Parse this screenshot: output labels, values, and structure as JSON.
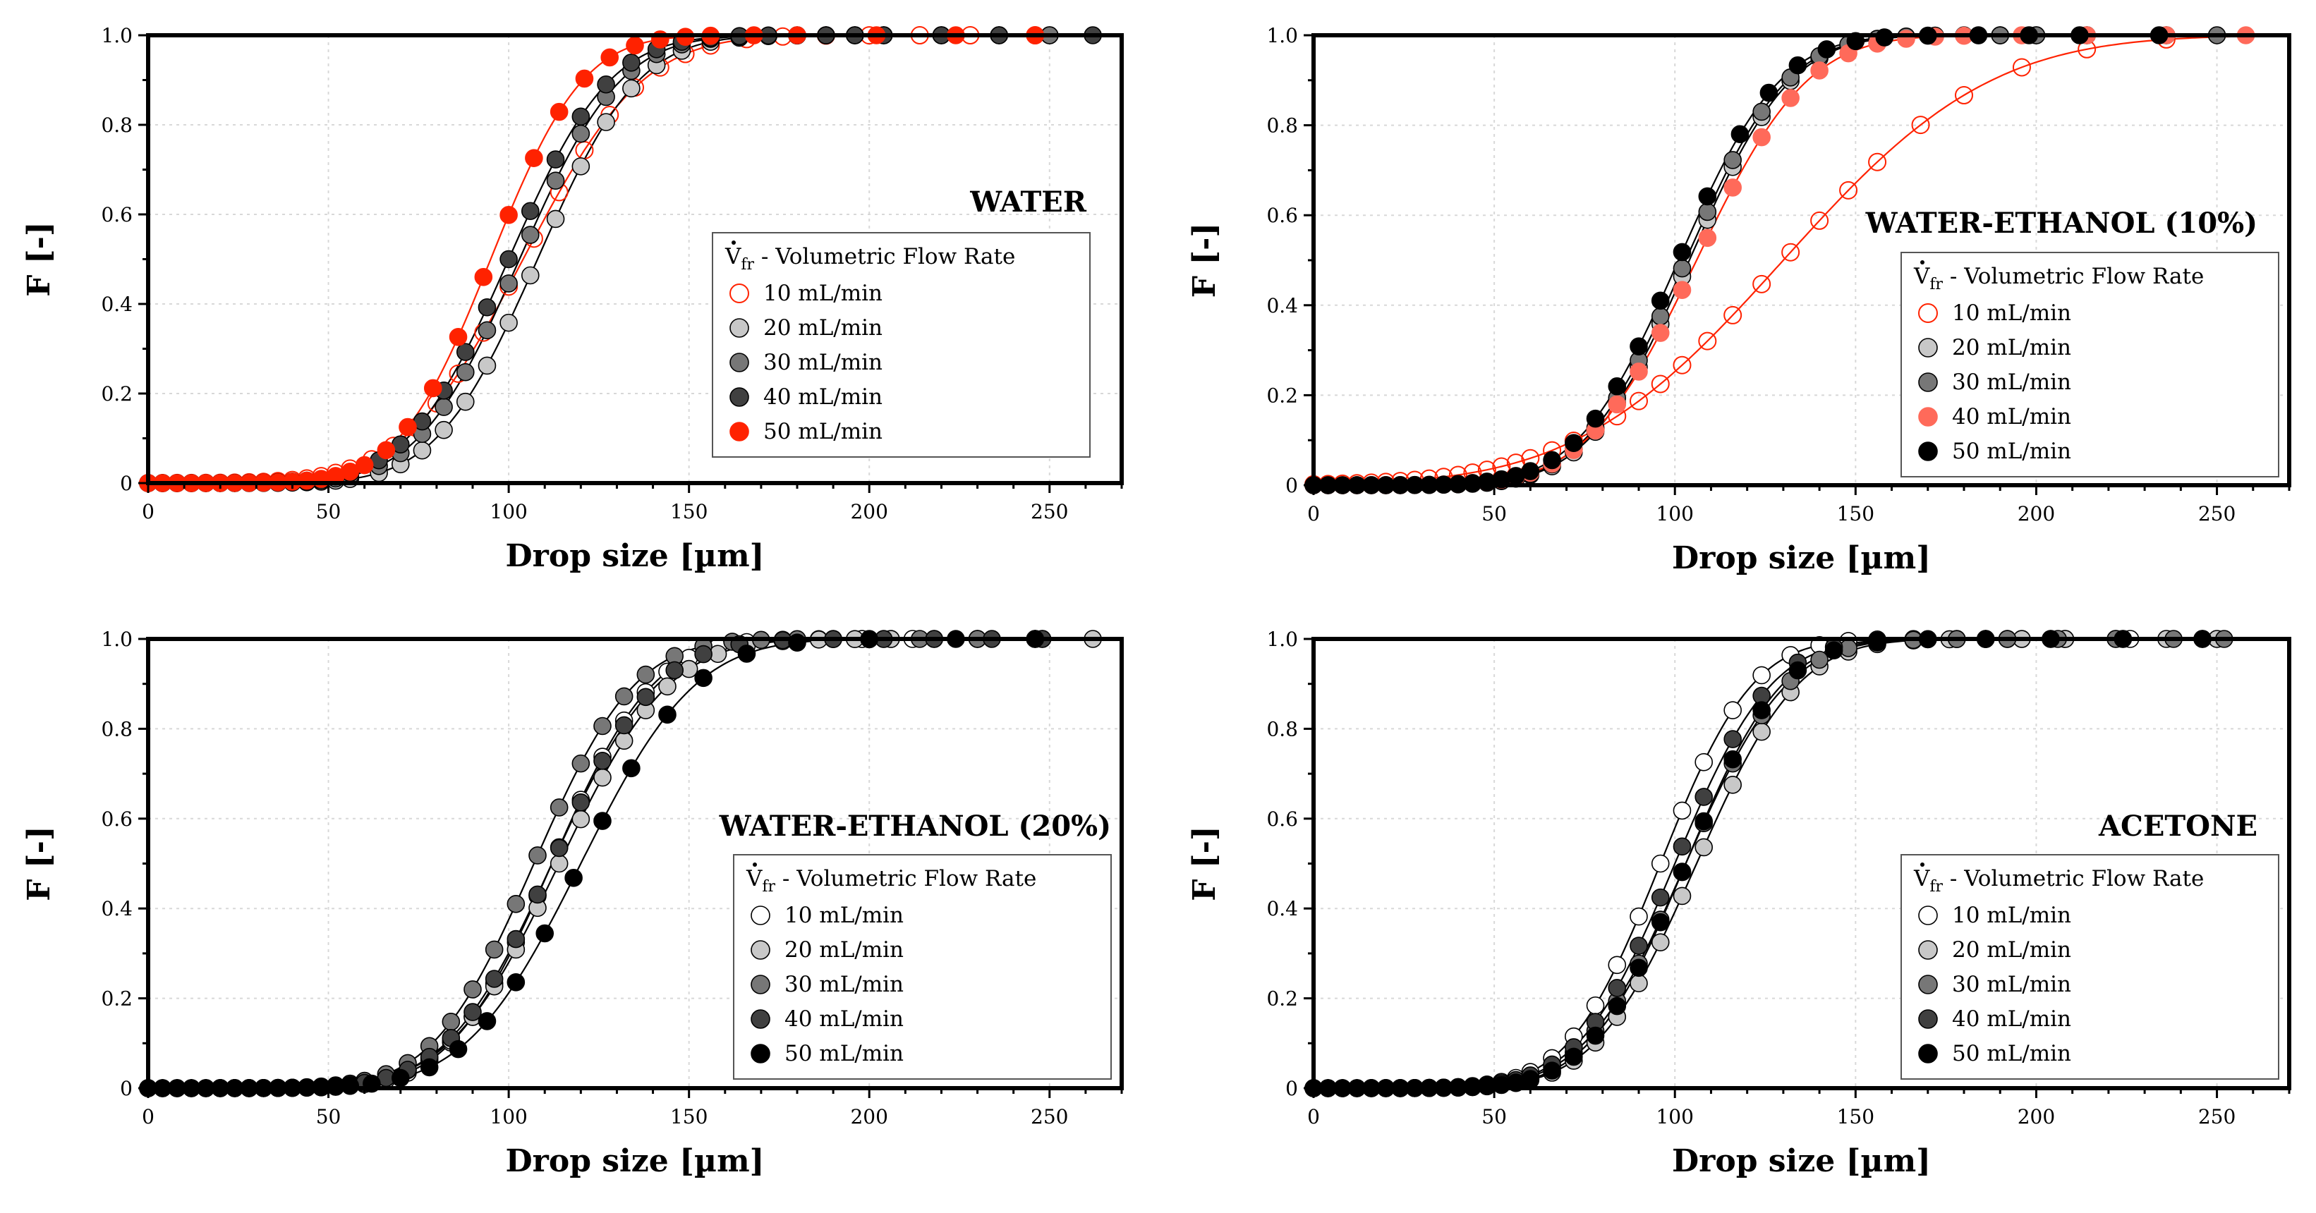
{
  "figure": {
    "legend_title_symbol": "V",
    "legend_title_subscript": "fr",
    "legend_title_rest": " - Volumetric Flow Rate"
  },
  "chart_data": [
    {
      "type": "scatter",
      "title": "WATER",
      "xlabel": "Drop size [µm]",
      "ylabel": "F [-]",
      "xlim": [
        0,
        270
      ],
      "ylim": [
        0,
        1.0
      ],
      "xticks": [
        "0",
        "50",
        "100",
        "150",
        "200",
        "250"
      ],
      "yticks": [
        "0",
        "0.2",
        "0.4",
        "0.6",
        "0.8",
        "1.0"
      ],
      "legend_position": "center-right",
      "series": [
        {
          "name": "10 mL/min",
          "mu": 104,
          "sigma": 26,
          "x_max": 270,
          "points_x": [
            0,
            4,
            8,
            12,
            16,
            20,
            24,
            28,
            32,
            36,
            40,
            44,
            48,
            52,
            56,
            62,
            68,
            74,
            80,
            86,
            93,
            100,
            107,
            114,
            121,
            128,
            135,
            142,
            149,
            156,
            166,
            176,
            188,
            200,
            214,
            228,
            246
          ],
          "color": "#ff2200",
          "fill": "none",
          "fit_color": "#ff2200"
        },
        {
          "name": "20 mL/min",
          "mu": 108,
          "sigma": 22,
          "x_max": 265,
          "points_x": [
            0,
            4,
            8,
            12,
            16,
            20,
            24,
            28,
            32,
            36,
            40,
            44,
            48,
            52,
            56,
            64,
            70,
            76,
            82,
            88,
            94,
            100,
            106,
            113,
            120,
            127,
            134,
            141,
            148,
            156,
            164,
            172,
            180,
            188,
            196,
            204,
            220,
            236,
            250
          ],
          "color": "#c8c8c8",
          "fill": "#c8c8c8",
          "fit_color": "#000000"
        },
        {
          "name": "30 mL/min",
          "mu": 103,
          "sigma": 22,
          "x_max": 265,
          "points_x": [
            0,
            4,
            8,
            12,
            16,
            20,
            24,
            28,
            32,
            36,
            40,
            44,
            48,
            52,
            56,
            64,
            70,
            76,
            82,
            88,
            94,
            100,
            106,
            113,
            120,
            127,
            134,
            141,
            148,
            156,
            164,
            172,
            180,
            188,
            196,
            204,
            220,
            236,
            250
          ],
          "color": "#777777",
          "fill": "#777777",
          "fit_color": "#000000"
        },
        {
          "name": "40 mL/min",
          "mu": 100,
          "sigma": 22,
          "x_max": 265,
          "points_x": [
            0,
            4,
            8,
            12,
            16,
            20,
            24,
            28,
            32,
            36,
            40,
            44,
            48,
            52,
            56,
            64,
            70,
            76,
            82,
            88,
            94,
            100,
            106,
            113,
            120,
            127,
            134,
            141,
            148,
            156,
            164,
            172,
            180,
            188,
            196,
            204,
            220,
            236,
            262
          ],
          "color": "#404040",
          "fill": "#404040",
          "fit_color": "#000000"
        },
        {
          "name": "50 mL/min",
          "mu": 95,
          "sigma": 20,
          "x_max": 265,
          "points_x": [
            0,
            4,
            8,
            12,
            16,
            20,
            24,
            28,
            32,
            36,
            40,
            44,
            48,
            52,
            56,
            60,
            66,
            72,
            79,
            86,
            93,
            100,
            107,
            114,
            121,
            128,
            135,
            142,
            149,
            156,
            168,
            180,
            202,
            224,
            246
          ],
          "color": "#ff2200",
          "fill": "#ff2200",
          "fit_color": "#ff2200"
        }
      ]
    },
    {
      "type": "scatter",
      "title": "WATER-ETHANOL (10%)",
      "xlabel": "Drop size [µm]",
      "ylabel": "F [-]",
      "xlim": [
        0,
        270
      ],
      "ylim": [
        0,
        1.0
      ],
      "xticks": [
        "0",
        "50",
        "100",
        "150",
        "200",
        "250"
      ],
      "yticks": [
        "0",
        "0.2",
        "0.4",
        "0.6",
        "0.8",
        "1.0"
      ],
      "legend_position": "center-right",
      "series": [
        {
          "name": "10 mL/min",
          "mu": 130,
          "sigma": 45,
          "x_max": 260,
          "points_x": [
            0,
            4,
            8,
            12,
            16,
            20,
            24,
            28,
            32,
            36,
            40,
            44,
            48,
            52,
            56,
            60,
            66,
            72,
            78,
            84,
            90,
            96,
            102,
            109,
            116,
            124,
            132,
            140,
            148,
            156,
            168,
            180,
            196,
            214,
            236
          ],
          "color": "#ff2200",
          "fill": "none",
          "fit_color": "#ff2200"
        },
        {
          "name": "20 mL/min",
          "mu": 104,
          "sigma": 22,
          "x_max": 260,
          "points_x": [
            0,
            4,
            8,
            12,
            16,
            20,
            24,
            28,
            32,
            36,
            40,
            44,
            48,
            52,
            56,
            60,
            66,
            72,
            78,
            84,
            90,
            96,
            102,
            109,
            116,
            124,
            132,
            140,
            148,
            156,
            164,
            172,
            180,
            190,
            200,
            214,
            236
          ],
          "color": "#c8c8c8",
          "fill": "#c8c8c8",
          "fit_color": "#000000"
        },
        {
          "name": "30 mL/min",
          "mu": 103,
          "sigma": 22,
          "x_max": 260,
          "points_x": [
            0,
            4,
            8,
            12,
            16,
            20,
            24,
            28,
            32,
            36,
            40,
            44,
            48,
            52,
            56,
            60,
            66,
            72,
            78,
            84,
            90,
            96,
            102,
            109,
            116,
            124,
            132,
            140,
            148,
            156,
            164,
            172,
            180,
            190,
            200,
            214,
            236,
            250
          ],
          "color": "#777777",
          "fill": "#777777",
          "fit_color": "#000000"
        },
        {
          "name": "40 mL/min",
          "mu": 106,
          "sigma": 24,
          "x_max": 260,
          "points_x": [
            0,
            4,
            8,
            12,
            16,
            20,
            24,
            28,
            32,
            36,
            40,
            44,
            48,
            52,
            56,
            60,
            66,
            72,
            78,
            84,
            90,
            96,
            102,
            109,
            116,
            124,
            132,
            140,
            148,
            156,
            164,
            172,
            180,
            196,
            214,
            236,
            258
          ],
          "color": "#ff6a5a",
          "fill": "#ff6a5a",
          "fit_color": "#ff2200"
        },
        {
          "name": "50 mL/min",
          "mu": 101,
          "sigma": 22,
          "x_max": 260,
          "points_x": [
            0,
            4,
            8,
            12,
            16,
            20,
            24,
            28,
            32,
            36,
            40,
            44,
            48,
            52,
            56,
            60,
            66,
            72,
            78,
            84,
            90,
            96,
            102,
            109,
            118,
            126,
            134,
            142,
            150,
            158,
            170,
            184,
            198,
            212,
            234
          ],
          "color": "#000000",
          "fill": "#000000",
          "fit_color": "#000000"
        }
      ]
    },
    {
      "type": "scatter",
      "title": "WATER-ETHANOL (20%)",
      "xlabel": "Drop size [µm]",
      "ylabel": "F [-]",
      "xlim": [
        0,
        270
      ],
      "ylim": [
        0,
        1.0
      ],
      "xticks": [
        "0",
        "50",
        "100",
        "150",
        "200",
        "250"
      ],
      "yticks": [
        "0",
        "0.2",
        "0.4",
        "0.6",
        "0.8",
        "1.0"
      ],
      "legend_position": "center-right",
      "series": [
        {
          "name": "10 mL/min",
          "mu": 112,
          "sigma": 22,
          "x_max": 265,
          "points_x": [
            0,
            4,
            8,
            12,
            16,
            20,
            24,
            28,
            32,
            36,
            40,
            44,
            48,
            52,
            56,
            60,
            66,
            72,
            78,
            84,
            90,
            96,
            102,
            108,
            114,
            120,
            126,
            132,
            138,
            144,
            150,
            158,
            166,
            176,
            186,
            198,
            212,
            230,
            248
          ],
          "color": "#ffffff",
          "fill": "#ffffff",
          "fit_color": "#000000"
        },
        {
          "name": "20 mL/min",
          "mu": 114,
          "sigma": 24,
          "x_max": 265,
          "points_x": [
            0,
            4,
            8,
            12,
            16,
            20,
            24,
            28,
            32,
            36,
            40,
            44,
            48,
            52,
            56,
            60,
            66,
            72,
            78,
            84,
            90,
            96,
            102,
            108,
            114,
            120,
            126,
            132,
            138,
            144,
            150,
            158,
            166,
            176,
            186,
            196,
            206,
            218,
            230,
            246,
            262
          ],
          "color": "#c8c8c8",
          "fill": "#c8c8c8",
          "fit_color": "#000000"
        },
        {
          "name": "30 mL/min",
          "mu": 107,
          "sigma": 22,
          "x_max": 265,
          "points_x": [
            0,
            4,
            8,
            12,
            16,
            20,
            24,
            28,
            32,
            36,
            40,
            44,
            48,
            52,
            56,
            60,
            66,
            72,
            78,
            84,
            90,
            96,
            102,
            108,
            114,
            120,
            126,
            132,
            138,
            146,
            154,
            162,
            170,
            180,
            190,
            200,
            214,
            230,
            246
          ],
          "color": "#777777",
          "fill": "#777777",
          "fit_color": "#000000"
        },
        {
          "name": "40 mL/min",
          "mu": 112,
          "sigma": 23,
          "x_max": 265,
          "points_x": [
            0,
            4,
            8,
            12,
            16,
            20,
            24,
            28,
            32,
            36,
            40,
            44,
            48,
            52,
            56,
            60,
            66,
            72,
            78,
            84,
            90,
            96,
            102,
            108,
            114,
            120,
            126,
            132,
            138,
            146,
            154,
            164,
            176,
            190,
            204,
            218,
            234,
            248
          ],
          "color": "#404040",
          "fill": "#404040",
          "fit_color": "#000000"
        },
        {
          "name": "50 mL/min",
          "mu": 120,
          "sigma": 25,
          "x_max": 265,
          "points_x": [
            0,
            4,
            8,
            12,
            16,
            20,
            24,
            28,
            32,
            36,
            40,
            44,
            48,
            52,
            56,
            62,
            70,
            78,
            86,
            94,
            102,
            110,
            118,
            126,
            134,
            144,
            154,
            166,
            180,
            200,
            224,
            246
          ],
          "color": "#000000",
          "fill": "#000000",
          "fit_color": "#000000"
        }
      ]
    },
    {
      "type": "scatter",
      "title": "ACETONE",
      "xlabel": "Drop size [µm]",
      "ylabel": "F [-]",
      "xlim": [
        0,
        270
      ],
      "ylim": [
        0,
        1.0
      ],
      "xticks": [
        "0",
        "50",
        "100",
        "150",
        "200",
        "250"
      ],
      "yticks": [
        "0",
        "0.2",
        "0.4",
        "0.6",
        "0.8",
        "1.0"
      ],
      "legend_position": "center-right",
      "series": [
        {
          "name": "10 mL/min",
          "mu": 96,
          "sigma": 20,
          "x_max": 260,
          "points_x": [
            0,
            4,
            8,
            12,
            16,
            20,
            24,
            28,
            32,
            36,
            40,
            44,
            48,
            52,
            56,
            60,
            66,
            72,
            78,
            84,
            90,
            96,
            102,
            108,
            116,
            124,
            132,
            140,
            148,
            156,
            166,
            178,
            192,
            208,
            226,
            246
          ],
          "color": "#ffffff",
          "fill": "#ffffff",
          "fit_color": "#000000"
        },
        {
          "name": "20 mL/min",
          "mu": 106,
          "sigma": 22,
          "x_max": 260,
          "points_x": [
            0,
            4,
            8,
            12,
            16,
            20,
            24,
            28,
            32,
            36,
            40,
            44,
            48,
            52,
            56,
            60,
            66,
            72,
            78,
            84,
            90,
            96,
            102,
            108,
            116,
            124,
            132,
            140,
            148,
            156,
            166,
            176,
            186,
            196,
            208,
            222,
            236,
            250
          ],
          "color": "#c8c8c8",
          "fill": "#c8c8c8",
          "fit_color": "#000000"
        },
        {
          "name": "30 mL/min",
          "mu": 103,
          "sigma": 22,
          "x_max": 260,
          "points_x": [
            0,
            4,
            8,
            12,
            16,
            20,
            24,
            28,
            32,
            36,
            40,
            44,
            48,
            52,
            56,
            60,
            66,
            72,
            78,
            84,
            90,
            96,
            102,
            108,
            116,
            124,
            132,
            140,
            148,
            156,
            166,
            178,
            192,
            206,
            222,
            238,
            252
          ],
          "color": "#777777",
          "fill": "#777777",
          "fit_color": "#000000"
        },
        {
          "name": "40 mL/min",
          "mu": 100,
          "sigma": 21,
          "x_max": 260,
          "points_x": [
            0,
            4,
            8,
            12,
            16,
            20,
            24,
            28,
            32,
            36,
            40,
            44,
            48,
            52,
            56,
            60,
            66,
            72,
            78,
            84,
            90,
            96,
            102,
            108,
            116,
            124,
            134,
            144,
            156,
            170,
            186,
            204,
            224,
            246
          ],
          "color": "#404040",
          "fill": "#404040",
          "fit_color": "#000000"
        },
        {
          "name": "50 mL/min",
          "mu": 103,
          "sigma": 21,
          "x_max": 260,
          "points_x": [
            0,
            4,
            8,
            12,
            16,
            20,
            24,
            28,
            32,
            36,
            40,
            44,
            48,
            52,
            56,
            60,
            66,
            72,
            78,
            84,
            90,
            96,
            102,
            108,
            116,
            124,
            134,
            144,
            156,
            170,
            186,
            204,
            224,
            246
          ],
          "color": "#000000",
          "fill": "#000000",
          "fit_color": "#000000"
        }
      ]
    }
  ]
}
